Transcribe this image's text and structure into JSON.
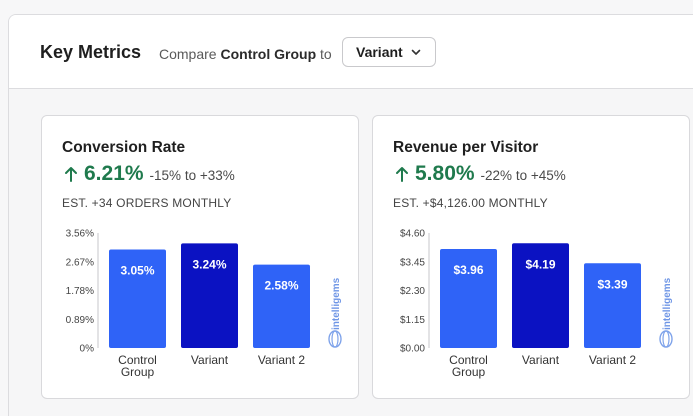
{
  "header": {
    "title": "Key Metrics",
    "compare_prefix": "Compare",
    "compare_group": "Control Group",
    "compare_to": "to",
    "select_value": "Variant"
  },
  "brand": {
    "name": "intelligems"
  },
  "colors": {
    "control": "#2f63f7",
    "variant": "#0b12c2",
    "variant2": "#2f63f7",
    "positive": "#1f7a4d"
  },
  "cards": [
    {
      "title": "Conversion Rate",
      "value": "6.21%",
      "range": "-15% to +33%",
      "estimate": "EST. +34 ORDERS MONTHLY",
      "chart_data": {
        "type": "bar",
        "categories": [
          "Control Group",
          "Variant",
          "Variant 2"
        ],
        "values": [
          3.05,
          3.24,
          2.58
        ],
        "labels": [
          "3.05%",
          "3.24%",
          "2.58%"
        ],
        "yticks": [
          "3.56%",
          "2.67%",
          "1.78%",
          "0.89%",
          "0%"
        ],
        "ylim": [
          0,
          3.56
        ]
      }
    },
    {
      "title": "Revenue per Visitor",
      "value": "5.80%",
      "range": "-22% to +45%",
      "estimate": "EST. +$4,126.00 MONTHLY",
      "chart_data": {
        "type": "bar",
        "categories": [
          "Control Group",
          "Variant",
          "Variant 2"
        ],
        "values": [
          3.96,
          4.19,
          3.39
        ],
        "labels": [
          "$3.96",
          "$4.19",
          "$3.39"
        ],
        "yticks": [
          "$4.60",
          "$3.45",
          "$2.30",
          "$1.15",
          "$0.00"
        ],
        "ylim": [
          0,
          4.6
        ]
      }
    }
  ]
}
